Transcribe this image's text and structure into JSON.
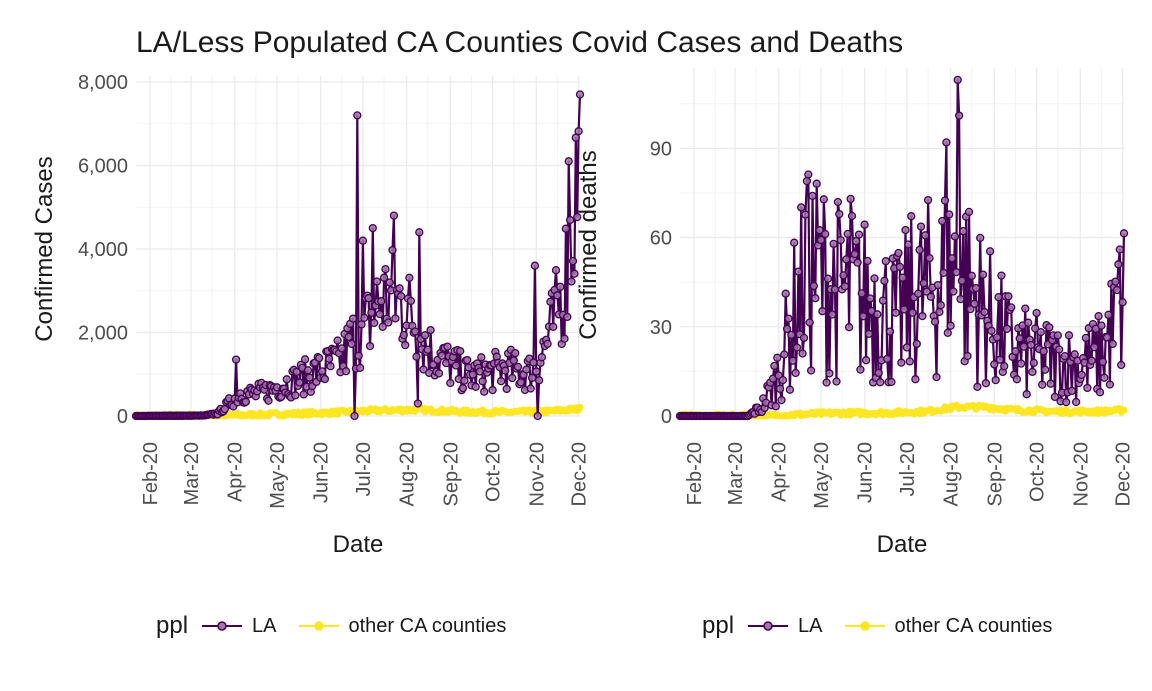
{
  "title": "LA/Less Populated CA Counties Covid Cases and Deaths",
  "colors": {
    "la": "#440154",
    "la_point": "#a076a8",
    "other": "#fde725",
    "grid": "#ebebeb"
  },
  "legend": {
    "title": "ppl",
    "labels": [
      "LA",
      "other CA counties"
    ]
  },
  "chart_data": [
    {
      "type": "line",
      "title": "",
      "xlabel": "Date",
      "ylabel": "Confirmed Cases",
      "x_ticks": [
        "Feb-20",
        "Mar-20",
        "Apr-20",
        "May-20",
        "Jun-20",
        "Jul-20",
        "Aug-20",
        "Sep-20",
        "Oct-20",
        "Nov-20",
        "Dec-20"
      ],
      "y_ticks": [
        "0",
        "2,000",
        "4,000",
        "6,000",
        "8,000"
      ],
      "y_tick_values": [
        0,
        2000,
        4000,
        6000,
        8000
      ],
      "xlim": [
        "2020-01-22",
        "2020-12-02"
      ],
      "ylim": [
        0,
        8000
      ],
      "grid": true,
      "legend_position": "bottom",
      "series": [
        {
          "name": "LA",
          "color": "#440154",
          "markers": true,
          "anchors": [
            [
              "2020-01-22",
              0
            ],
            [
              "2020-03-10",
              10
            ],
            [
              "2020-03-20",
              60
            ],
            [
              "2020-03-28",
              300
            ],
            [
              "2020-04-05",
              550
            ],
            [
              "2020-04-15",
              520
            ],
            [
              "2020-04-25",
              600
            ],
            [
              "2020-05-05",
              750
            ],
            [
              "2020-05-15",
              850
            ],
            [
              "2020-05-25",
              1000
            ],
            [
              "2020-06-05",
              1150
            ],
            [
              "2020-06-15",
              1300
            ],
            [
              "2020-06-25",
              1900
            ],
            [
              "2020-07-05",
              2200
            ],
            [
              "2020-07-12",
              2700
            ],
            [
              "2020-07-20",
              2900
            ],
            [
              "2020-07-28",
              2700
            ],
            [
              "2020-08-05",
              2400
            ],
            [
              "2020-08-12",
              1800
            ],
            [
              "2020-08-20",
              1500
            ],
            [
              "2020-09-01",
              1200
            ],
            [
              "2020-09-15",
              950
            ],
            [
              "2020-10-01",
              1050
            ],
            [
              "2020-10-10",
              1150
            ],
            [
              "2020-10-20",
              1050
            ],
            [
              "2020-10-28",
              1050
            ],
            [
              "2020-11-05",
              1500
            ],
            [
              "2020-11-12",
              2100
            ],
            [
              "2020-11-20",
              3000
            ],
            [
              "2020-11-26",
              4300
            ],
            [
              "2020-12-02",
              6500
            ]
          ],
          "spikes": [
            [
              "2020-04-02",
              1350
            ],
            [
              "2020-06-27",
              7200
            ],
            [
              "2020-07-01",
              4200
            ],
            [
              "2020-07-08",
              4500
            ],
            [
              "2020-07-23",
              4800
            ],
            [
              "2020-08-10",
              4400
            ],
            [
              "2020-08-09",
              300
            ],
            [
              "2020-06-25",
              0
            ],
            [
              "2020-10-31",
              3600
            ],
            [
              "2020-11-02",
              0
            ],
            [
              "2020-11-24",
              6100
            ],
            [
              "2020-12-02",
              7700
            ]
          ]
        },
        {
          "name": "other CA counties",
          "color": "#fde725",
          "markers": true,
          "anchors": [
            [
              "2020-01-22",
              0
            ],
            [
              "2020-03-15",
              5
            ],
            [
              "2020-04-10",
              25
            ],
            [
              "2020-05-10",
              50
            ],
            [
              "2020-06-10",
              80
            ],
            [
              "2020-07-10",
              130
            ],
            [
              "2020-08-10",
              150
            ],
            [
              "2020-09-10",
              100
            ],
            [
              "2020-10-10",
              90
            ],
            [
              "2020-11-10",
              110
            ],
            [
              "2020-12-02",
              170
            ]
          ],
          "spikes": []
        }
      ]
    },
    {
      "type": "line",
      "title": "",
      "xlabel": "Date",
      "ylabel": "Confirmed deaths",
      "x_ticks": [
        "Feb-20",
        "Mar-20",
        "Apr-20",
        "May-20",
        "Jun-20",
        "Jul-20",
        "Aug-20",
        "Sep-20",
        "Oct-20",
        "Nov-20",
        "Dec-20"
      ],
      "y_ticks": [
        "0",
        "30",
        "60",
        "90"
      ],
      "y_tick_values": [
        0,
        30,
        60,
        90
      ],
      "xlim": [
        "2020-01-22",
        "2020-12-02"
      ],
      "ylim": [
        0,
        115
      ],
      "grid": true,
      "legend_position": "bottom",
      "series": [
        {
          "name": "LA",
          "color": "#440154",
          "markers": true,
          "anchors": [
            [
              "2020-01-22",
              0
            ],
            [
              "2020-03-10",
              0
            ],
            [
              "2020-03-20",
              3
            ],
            [
              "2020-03-28",
              10
            ],
            [
              "2020-04-05",
              22
            ],
            [
              "2020-04-15",
              40
            ],
            [
              "2020-04-25",
              50
            ],
            [
              "2020-05-05",
              45
            ],
            [
              "2020-05-15",
              42
            ],
            [
              "2020-05-25",
              40
            ],
            [
              "2020-06-05",
              38
            ],
            [
              "2020-06-15",
              35
            ],
            [
              "2020-06-25",
              32
            ],
            [
              "2020-07-05",
              40
            ],
            [
              "2020-07-15",
              42
            ],
            [
              "2020-07-25",
              45
            ],
            [
              "2020-08-05",
              48
            ],
            [
              "2020-08-15",
              42
            ],
            [
              "2020-08-25",
              35
            ],
            [
              "2020-09-05",
              28
            ],
            [
              "2020-09-15",
              22
            ],
            [
              "2020-10-01",
              20
            ],
            [
              "2020-10-15",
              18
            ],
            [
              "2020-11-01",
              17
            ],
            [
              "2020-11-15",
              20
            ],
            [
              "2020-11-25",
              30
            ],
            [
              "2020-12-02",
              40
            ]
          ],
          "spikes": [
            [
              "2020-04-21",
              79
            ],
            [
              "2020-05-22",
              73
            ],
            [
              "2020-07-29",
              92
            ],
            [
              "2020-08-06",
              113
            ],
            [
              "2020-08-07",
              101
            ],
            [
              "2020-08-12",
              67
            ],
            [
              "2020-11-28",
              51
            ]
          ]
        },
        {
          "name": "other CA counties",
          "color": "#fde725",
          "markers": true,
          "anchors": [
            [
              "2020-01-22",
              0
            ],
            [
              "2020-03-25",
              0
            ],
            [
              "2020-04-15",
              0.5
            ],
            [
              "2020-05-15",
              1
            ],
            [
              "2020-06-15",
              1
            ],
            [
              "2020-07-15",
              1.5
            ],
            [
              "2020-08-05",
              3
            ],
            [
              "2020-08-25",
              3
            ],
            [
              "2020-09-15",
              2
            ],
            [
              "2020-10-15",
              1.5
            ],
            [
              "2020-11-15",
              1.5
            ],
            [
              "2020-12-02",
              2
            ]
          ],
          "spikes": []
        }
      ]
    }
  ]
}
